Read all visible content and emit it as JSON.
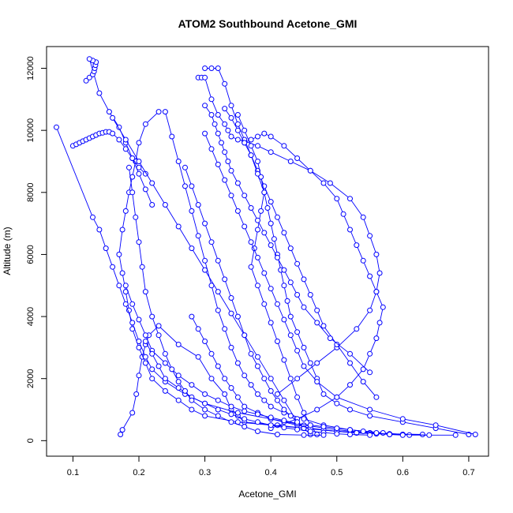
{
  "chart_data": {
    "type": "line",
    "title": "ATOM2 Southbound Acetone_GMI",
    "xlabel": "Acetone_GMI",
    "ylabel": "Altitude (m)",
    "xlim": [
      0.06,
      0.73
    ],
    "ylim": [
      -500,
      12700
    ],
    "xticks": [
      "0.1",
      "0.2",
      "0.3",
      "0.4",
      "0.5",
      "0.6",
      "0.7"
    ],
    "yticks": [
      "0",
      "2000",
      "4000",
      "6000",
      "8000",
      "10000",
      "12000"
    ],
    "grid": false,
    "legend": "none",
    "marker": "open-circle",
    "color": "#0000ff",
    "series": [
      {
        "x": [
          0.172,
          0.175,
          0.19,
          0.196,
          0.2,
          0.205,
          0.21,
          0.215,
          0.23,
          0.26,
          0.29,
          0.31,
          0.33,
          0.34,
          0.35,
          0.36,
          0.41,
          0.45,
          0.5,
          0.53,
          0.58,
          0.63
        ],
        "y": [
          200,
          350,
          900,
          1500,
          2100,
          2700,
          3100,
          3400,
          3700,
          3100,
          2700,
          2000,
          1500,
          1000,
          800,
          600,
          500,
          400,
          300,
          250,
          220,
          200
        ]
      },
      {
        "x": [
          0.23,
          0.21,
          0.2,
          0.195,
          0.19,
          0.185,
          0.18,
          0.175,
          0.17,
          0.175,
          0.18,
          0.185,
          0.19,
          0.2,
          0.21,
          0.22,
          0.24,
          0.26,
          0.28,
          0.3,
          0.35,
          0.4,
          0.45,
          0.5,
          0.55,
          0.6
        ],
        "y": [
          10600,
          10200,
          9600,
          9000,
          8500,
          8000,
          7400,
          6800,
          6000,
          5400,
          4800,
          4200,
          3600,
          3000,
          2500,
          2000,
          1600,
          1300,
          1000,
          800,
          600,
          500,
          400,
          300,
          250,
          200
        ]
      },
      {
        "x": [
          0.075,
          0.13,
          0.14,
          0.15,
          0.16,
          0.17,
          0.18,
          0.19,
          0.2,
          0.21,
          0.22,
          0.24,
          0.27,
          0.3,
          0.35,
          0.4,
          0.45,
          0.5,
          0.55,
          0.58
        ],
        "y": [
          10100,
          7200,
          6800,
          6200,
          5600,
          5000,
          4400,
          3800,
          3200,
          2700,
          2300,
          1900,
          1500,
          1200,
          900,
          700,
          500,
          350,
          250,
          200
        ]
      },
      {
        "x": [
          0.1,
          0.105,
          0.11,
          0.115,
          0.12,
          0.125,
          0.13,
          0.135,
          0.14,
          0.145,
          0.15,
          0.155,
          0.16,
          0.17,
          0.18,
          0.19,
          0.2,
          0.21
        ],
        "y": [
          9500,
          9550,
          9600,
          9650,
          9700,
          9750,
          9800,
          9850,
          9900,
          9920,
          9950,
          9950,
          9900,
          9700,
          9400,
          9100,
          8800,
          8600
        ]
      },
      {
        "x": [
          0.12,
          0.125,
          0.13,
          0.132,
          0.133,
          0.134,
          0.135,
          0.13,
          0.125,
          0.14,
          0.155,
          0.17,
          0.18,
          0.19,
          0.2,
          0.21,
          0.22
        ],
        "y": [
          11600,
          11700,
          11800,
          11900,
          12000,
          12100,
          12200,
          12250,
          12300,
          11200,
          10600,
          10100,
          9600,
          9100,
          8600,
          8100,
          7600
        ]
      },
      {
        "x": [
          0.29,
          0.295,
          0.3,
          0.31,
          0.32,
          0.33,
          0.335,
          0.34,
          0.35,
          0.36,
          0.38,
          0.4,
          0.43,
          0.46,
          0.49,
          0.52,
          0.54,
          0.55,
          0.56,
          0.565,
          0.56,
          0.55,
          0.53,
          0.5,
          0.47,
          0.44,
          0.41
        ],
        "y": [
          11700,
          11700,
          11700,
          11000,
          10500,
          10200,
          10000,
          9800,
          9700,
          9650,
          9500,
          9300,
          9000,
          8700,
          8300,
          7800,
          7200,
          6600,
          6000,
          5400,
          4800,
          4200,
          3600,
          3000,
          2500,
          2000,
          1500
        ]
      },
      {
        "x": [
          0.3,
          0.31,
          0.32,
          0.33,
          0.34,
          0.35,
          0.36,
          0.37,
          0.38,
          0.39,
          0.4,
          0.41,
          0.42,
          0.43,
          0.44,
          0.45,
          0.46,
          0.47,
          0.48,
          0.5,
          0.52,
          0.54,
          0.56
        ],
        "y": [
          12000,
          12000,
          12000,
          11500,
          10800,
          10200,
          9700,
          9200,
          8700,
          8200,
          7700,
          7200,
          6700,
          6200,
          5700,
          5200,
          4700,
          4200,
          3700,
          3100,
          2500,
          1900,
          1400
        ]
      },
      {
        "x": [
          0.35,
          0.36,
          0.37,
          0.38,
          0.385,
          0.39,
          0.395,
          0.4,
          0.405,
          0.41,
          0.415,
          0.42,
          0.425,
          0.43,
          0.44,
          0.45,
          0.46,
          0.47,
          0.48,
          0.5,
          0.52,
          0.55,
          0.6,
          0.65,
          0.7
        ],
        "y": [
          10500,
          10000,
          9500,
          9000,
          8500,
          8000,
          7500,
          7000,
          6500,
          6000,
          5500,
          5000,
          4500,
          4000,
          3500,
          3000,
          2500,
          2000,
          1500,
          1200,
          1000,
          800,
          600,
          400,
          200
        ]
      },
      {
        "x": [
          0.33,
          0.34,
          0.35,
          0.36,
          0.37,
          0.38,
          0.39,
          0.385,
          0.38,
          0.375,
          0.37,
          0.38,
          0.39,
          0.4,
          0.41,
          0.42,
          0.43,
          0.44,
          0.45,
          0.46,
          0.47
        ],
        "y": [
          10700,
          10400,
          10000,
          9600,
          9200,
          8600,
          8000,
          7400,
          6800,
          6200,
          5600,
          5000,
          4400,
          3800,
          3200,
          2600,
          2000,
          1400,
          900,
          500,
          200
        ]
      },
      {
        "x": [
          0.24,
          0.25,
          0.26,
          0.27,
          0.28,
          0.29,
          0.3,
          0.31,
          0.32,
          0.33,
          0.34,
          0.35,
          0.36,
          0.37,
          0.38,
          0.39,
          0.4,
          0.42,
          0.45,
          0.48,
          0.52,
          0.57,
          0.61,
          0.68
        ],
        "y": [
          10600,
          9800,
          9000,
          8200,
          7400,
          6600,
          5800,
          5000,
          4200,
          3600,
          3000,
          2500,
          2100,
          1800,
          1500,
          1300,
          1100,
          900,
          700,
          500,
          350,
          250,
          180,
          180
        ]
      },
      {
        "x": [
          0.36,
          0.37,
          0.38,
          0.39,
          0.4,
          0.42,
          0.44,
          0.46,
          0.48,
          0.5,
          0.51,
          0.52,
          0.53,
          0.54,
          0.55,
          0.56,
          0.57,
          0.565,
          0.56,
          0.55,
          0.54,
          0.52,
          0.5,
          0.47,
          0.44,
          0.4
        ],
        "y": [
          9600,
          9700,
          9800,
          9900,
          9800,
          9500,
          9100,
          8700,
          8300,
          7800,
          7300,
          6800,
          6300,
          5800,
          5300,
          4800,
          4300,
          3800,
          3300,
          2800,
          2300,
          1800,
          1400,
          1000,
          700,
          400
        ]
      },
      {
        "x": [
          0.27,
          0.28,
          0.29,
          0.3,
          0.31,
          0.32,
          0.33,
          0.34,
          0.35,
          0.36,
          0.37,
          0.38,
          0.39,
          0.4,
          0.41,
          0.42,
          0.43,
          0.44,
          0.45,
          0.46
        ],
        "y": [
          8800,
          8200,
          7600,
          7000,
          6400,
          5800,
          5200,
          4600,
          4000,
          3400,
          2800,
          2400,
          2000,
          1600,
          1300,
          1000,
          800,
          600,
          400,
          200
        ]
      },
      {
        "x": [
          0.3,
          0.31,
          0.32,
          0.33,
          0.34,
          0.35,
          0.36,
          0.37,
          0.38,
          0.39,
          0.4,
          0.41,
          0.42,
          0.43,
          0.44,
          0.45,
          0.47,
          0.5,
          0.55,
          0.6,
          0.65,
          0.71
        ],
        "y": [
          9900,
          9400,
          8900,
          8400,
          7900,
          7400,
          6900,
          6400,
          5900,
          5400,
          4900,
          4400,
          3900,
          3400,
          2900,
          2400,
          1900,
          1400,
          1000,
          700,
          500,
          200
        ]
      },
      {
        "x": [
          0.28,
          0.29,
          0.3,
          0.31,
          0.32,
          0.33,
          0.34,
          0.35,
          0.36,
          0.38,
          0.4,
          0.42,
          0.44,
          0.46,
          0.48,
          0.5,
          0.53,
          0.56,
          0.6,
          0.64
        ],
        "y": [
          4000,
          3600,
          3200,
          2800,
          2400,
          2000,
          1700,
          1400,
          1100,
          900,
          700,
          600,
          500,
          400,
          350,
          300,
          250,
          220,
          200,
          180
        ]
      },
      {
        "x": [
          0.18,
          0.19,
          0.2,
          0.21,
          0.22,
          0.24,
          0.26,
          0.28,
          0.3,
          0.32,
          0.34,
          0.36,
          0.38,
          0.4,
          0.42,
          0.44,
          0.46,
          0.48,
          0.5,
          0.52,
          0.54,
          0.56,
          0.58,
          0.6
        ],
        "y": [
          5000,
          4400,
          3900,
          3400,
          2900,
          2500,
          2100,
          1800,
          1500,
          1300,
          1100,
          950,
          850,
          750,
          650,
          550,
          500,
          450,
          400,
          350,
          300,
          250,
          200,
          180
        ]
      },
      {
        "x": [
          0.21,
          0.22,
          0.23,
          0.24,
          0.26,
          0.28,
          0.3,
          0.32,
          0.34,
          0.36,
          0.38,
          0.4,
          0.42,
          0.44,
          0.46,
          0.48,
          0.5,
          0.52,
          0.55
        ],
        "y": [
          3200,
          2800,
          2400,
          2000,
          1700,
          1400,
          1200,
          1000,
          850,
          700,
          600,
          500,
          420,
          360,
          300,
          260,
          220,
          200,
          180
        ]
      },
      {
        "x": [
          0.185,
          0.19,
          0.195,
          0.2,
          0.205,
          0.21,
          0.22,
          0.23,
          0.24,
          0.25,
          0.26,
          0.27,
          0.28,
          0.3,
          0.32,
          0.34,
          0.36,
          0.38,
          0.41,
          0.45,
          0.48
        ],
        "y": [
          8800,
          8000,
          7200,
          6400,
          5600,
          4800,
          4000,
          3400,
          2800,
          2300,
          1900,
          1600,
          1300,
          1000,
          800,
          600,
          450,
          300,
          200,
          180,
          180
        ]
      },
      {
        "x": [
          0.16,
          0.18,
          0.2,
          0.22,
          0.24,
          0.26,
          0.28,
          0.3,
          0.32,
          0.34,
          0.36,
          0.38,
          0.4,
          0.42,
          0.44
        ],
        "y": [
          10400,
          9700,
          9000,
          8300,
          7600,
          6900,
          6200,
          5500,
          4800,
          4100,
          3400,
          2700,
          2000,
          1300,
          600
        ]
      },
      {
        "x": [
          0.3,
          0.31,
          0.315,
          0.32,
          0.325,
          0.33,
          0.335,
          0.34,
          0.35,
          0.36,
          0.37,
          0.38,
          0.39,
          0.4,
          0.41,
          0.42,
          0.43,
          0.44,
          0.45,
          0.47,
          0.49,
          0.52,
          0.55
        ],
        "y": [
          10800,
          10500,
          10200,
          9900,
          9600,
          9300,
          9000,
          8700,
          8300,
          7900,
          7500,
          7100,
          6700,
          6300,
          5900,
          5500,
          5100,
          4700,
          4300,
          3800,
          3300,
          2800,
          2200
        ]
      }
    ]
  }
}
